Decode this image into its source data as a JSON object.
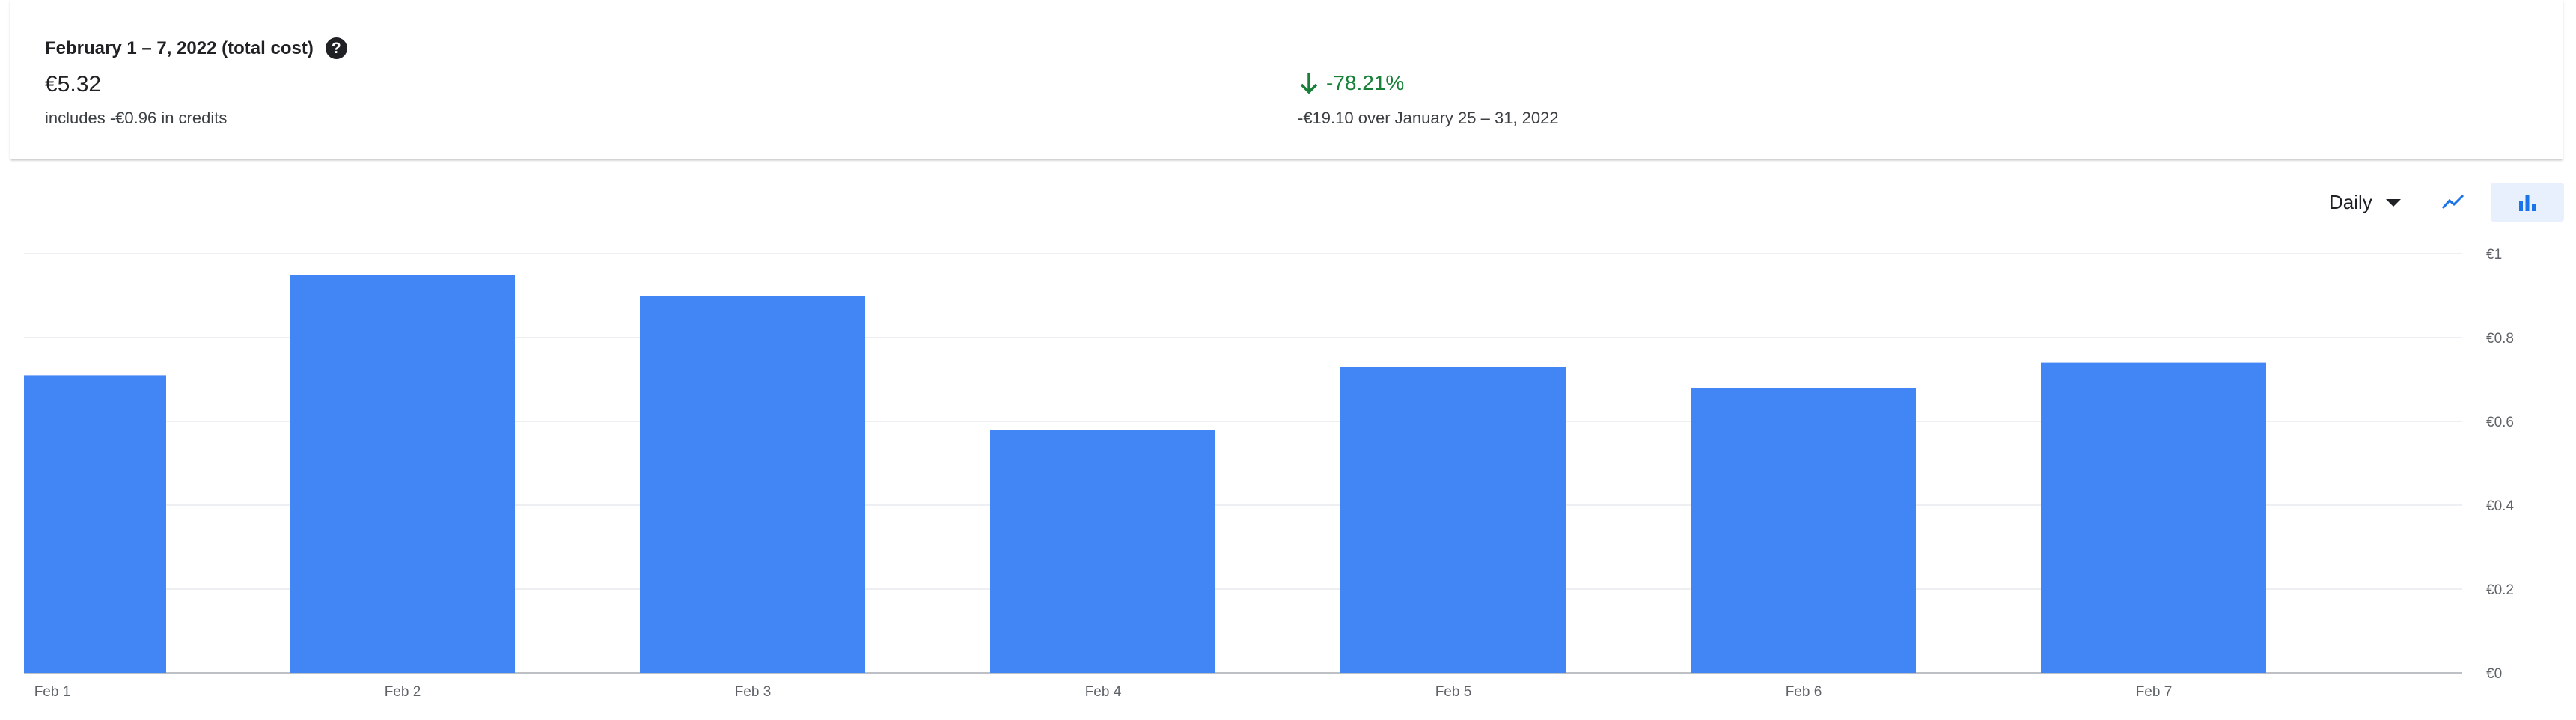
{
  "summary": {
    "period_title": "February 1 – 7, 2022 (total cost)",
    "total_cost": "€5.32",
    "credits_note": "includes -€0.96 in credits",
    "change_percent": "-78.21%",
    "compare_note": "-€19.10 over January 25 – 31, 2022",
    "change_color": "#188038"
  },
  "controls": {
    "granularity_label": "Daily",
    "line_chart_icon": "line-chart-icon",
    "bar_chart_icon": "bar-chart-icon",
    "active_view": "bar"
  },
  "chart_data": {
    "type": "bar",
    "categories": [
      "Feb 1",
      "Feb 2",
      "Feb 3",
      "Feb 4",
      "Feb 5",
      "Feb 6",
      "Feb 7"
    ],
    "values": [
      0.71,
      0.95,
      0.9,
      0.58,
      0.73,
      0.68,
      0.74
    ],
    "ylim": [
      0,
      1
    ],
    "yticks": [
      0,
      0.2,
      0.4,
      0.6,
      0.8,
      1
    ],
    "ytick_labels": [
      "€0",
      "€0.2",
      "€0.4",
      "€0.6",
      "€0.8",
      "€1"
    ],
    "y_axis_side": "right",
    "grid": true,
    "bar_color": "#4285f4",
    "grid_color": "#e8eaed"
  }
}
